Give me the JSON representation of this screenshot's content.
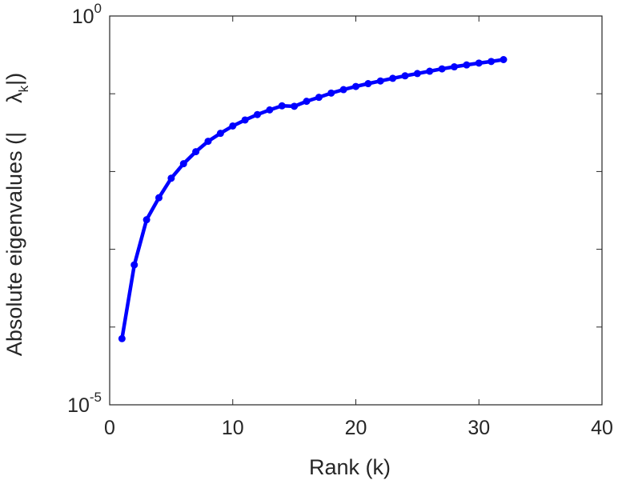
{
  "chart_data": {
    "type": "line",
    "xlabel": "Rank (k)",
    "ylabel_parts": [
      "Absolute eigenvalues (|",
      "λ",
      "k",
      "|)"
    ],
    "xlim": [
      0,
      40
    ],
    "xticks": [
      0,
      10,
      20,
      30,
      40
    ],
    "ylim": [
      1e-05,
      1
    ],
    "yscale": "log",
    "yticks": [
      {
        "value": 1e-05,
        "base": "10",
        "exponent": "-5"
      },
      {
        "value": 1,
        "base": "10",
        "exponent": "0"
      }
    ],
    "ytick_minor": [
      0.0001,
      0.001,
      0.01,
      0.1
    ],
    "grid": false,
    "series": [
      {
        "color": "#0000ff",
        "marker": "circle",
        "x": [
          1,
          2,
          3,
          4,
          5,
          6,
          7,
          8,
          9,
          10,
          11,
          12,
          13,
          14,
          15,
          16,
          17,
          18,
          19,
          20,
          21,
          22,
          23,
          24,
          25,
          26,
          27,
          28,
          29,
          30,
          31,
          32
        ],
        "y": [
          7.1e-05,
          0.00063,
          0.0024,
          0.0046,
          0.0082,
          0.0126,
          0.018,
          0.0245,
          0.031,
          0.0385,
          0.046,
          0.054,
          0.062,
          0.07,
          0.069,
          0.08,
          0.09,
          0.102,
          0.113,
          0.124,
          0.135,
          0.146,
          0.158,
          0.17,
          0.182,
          0.195,
          0.209,
          0.222,
          0.235,
          0.248,
          0.26,
          0.275
        ]
      }
    ]
  }
}
